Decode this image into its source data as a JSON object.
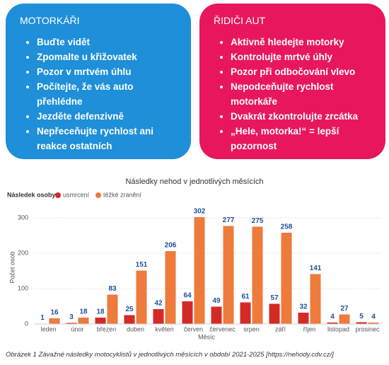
{
  "boxes": [
    {
      "title": "MOTORKÁŘI",
      "items": [
        "Buďte vidět",
        "Zpomalte u křižovatek",
        "Pozor v mrtvém úhlu",
        "Počítejte, že vás auto přehlédne",
        "Jezděte defenzivně",
        "Nepřeceňujte rychlost ani reakce ostatních"
      ]
    },
    {
      "title": "ŘIDIČI AUT",
      "items": [
        "Aktivně hledejte motorky",
        "Kontrolujte mrtvé úhly",
        "Pozor při odbočování vlevo",
        "Nepodceňujte rychlost motorkáře",
        "Dvakrát zkontrolujte zrcátka",
        "„Hele, motorka!“ = lepší pozornost"
      ]
    }
  ],
  "chart_data": {
    "type": "bar",
    "title": "Následky nehod v jednotlivých měsících",
    "legend_title": "Následek osoby",
    "x_label": "Měsíc",
    "y_label": "Počet osob",
    "categories": [
      "leden",
      "únor",
      "březen",
      "duben",
      "květen",
      "červen",
      "červenec",
      "srpen",
      "září",
      "říjen",
      "listopad",
      "prosinec"
    ],
    "series": [
      {
        "name": "usmrcení",
        "color": "#d42a25",
        "values": [
          1,
          3,
          18,
          25,
          42,
          64,
          49,
          61,
          57,
          32,
          4,
          5
        ]
      },
      {
        "name": "těžké zranění",
        "color": "#ee7a3c",
        "values": [
          16,
          18,
          83,
          151,
          206,
          302,
          277,
          275,
          258,
          141,
          27,
          4
        ]
      }
    ],
    "ylim": [
      0,
      320
    ],
    "yticks": [
      0,
      100,
      200,
      300
    ],
    "grid": true
  },
  "caption": "Obrázek 1 Závažné následky motocyklistů v jednotlivých měsících v období 2021-2025 [https://nehody.cdv.cz/]"
}
